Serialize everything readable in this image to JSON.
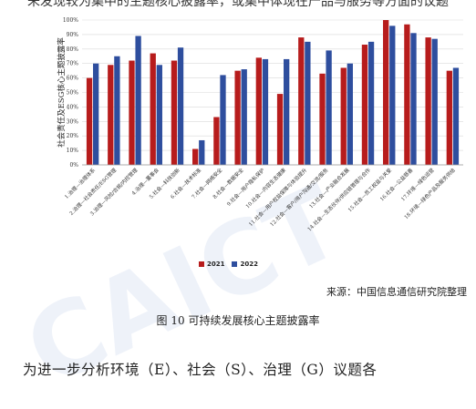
{
  "page": {
    "top_text": "未发现较为集中的主题核心披露率，或集中体现在产品与服务等方面的议题",
    "source": "来源：中国信息通信研究院整理",
    "caption": "图 10 可持续发展核心主题披露率",
    "body_text": "为进一步分析环境（E）、社会（S）、治理（G）议题各",
    "watermark": "CAICT"
  },
  "colors": {
    "s2021": "#b71c1c",
    "s2022": "#2e4e9e"
  },
  "chart_data": {
    "type": "bar",
    "ylabel": "社会责任及ESG核心主题披露率",
    "ylim": [
      0,
      100
    ],
    "yticks": [
      "0%",
      "10%",
      "20%",
      "30%",
      "40%",
      "50%",
      "60%",
      "70%",
      "80%",
      "90%",
      "100%"
    ],
    "grid": true,
    "legend_position": "bottom",
    "categories": [
      "1.治理—治理体系",
      "2.治理—社会责任/ESG管理",
      "3.治理—风险/合规/内控管理",
      "4.治理—董事会",
      "5.社会—科技创新",
      "6.社会—技术标准",
      "7.社会—网络安全",
      "8.社会—数据安全",
      "9.社会—用户隐私保护",
      "10.社会—内容生态健康",
      "11.社会—用户权益保障与体验提升",
      "12.社会—客户/用户沟通/交流/服务",
      "13.社会—产业融合发展",
      "14.社会—生态伙伴/供应链管理与合作",
      "15.社会—员工权益与关爱",
      "16.社会—公益慈善",
      "17.环境—绿色运营",
      "18.环境—绿色产品及服务供给"
    ],
    "series": [
      {
        "name": "2021",
        "values": [
          60,
          69,
          72,
          77,
          72,
          11,
          33,
          65,
          74,
          49,
          88,
          63,
          67,
          83,
          100,
          97,
          88,
          65
        ]
      },
      {
        "name": "2022",
        "values": [
          70,
          75,
          89,
          69,
          81,
          17,
          62,
          66,
          73,
          73,
          85,
          79,
          70,
          85,
          96,
          91,
          87,
          67
        ]
      }
    ]
  }
}
